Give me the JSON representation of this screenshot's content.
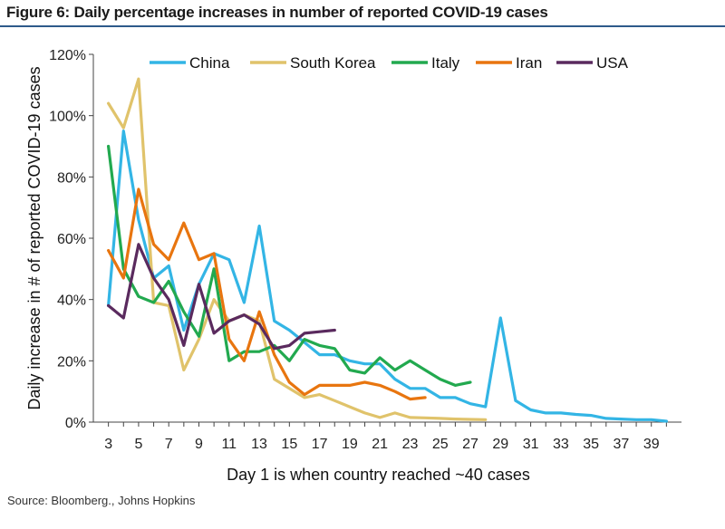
{
  "header": {
    "title": "Figure 6: Daily percentage increases in number of reported COVID-19 cases"
  },
  "footer": {
    "source": "Source: Bloomberg., Johns Hopkins"
  },
  "chart_data": {
    "type": "line",
    "title": "Figure 6: Daily percentage increases in number of reported COVID-19 cases",
    "xlabel": "Day 1 is when country reached ~40 cases",
    "ylabel": "Daily increase in # of reported COVID-19 cases",
    "xlim": [
      3,
      40
    ],
    "ylim": [
      0,
      120
    ],
    "x_ticks": [
      "3",
      "5",
      "7",
      "9",
      "11",
      "13",
      "15",
      "17",
      "19",
      "21",
      "23",
      "25",
      "27",
      "29",
      "31",
      "33",
      "35",
      "37",
      "39"
    ],
    "y_ticks": [
      "0%",
      "20%",
      "40%",
      "60%",
      "80%",
      "100%",
      "120%"
    ],
    "grid": false,
    "legend_position": "top",
    "series": [
      {
        "name": "China",
        "color": "#33b5e5",
        "x": [
          3,
          4,
          5,
          6,
          7,
          8,
          9,
          10,
          11,
          12,
          13,
          14,
          15,
          16,
          17,
          18,
          19,
          20,
          21,
          22,
          23,
          24,
          25,
          26,
          27,
          28,
          29,
          30,
          31,
          32,
          33,
          34,
          35,
          36,
          37,
          38,
          39,
          40
        ],
        "values": [
          38,
          95,
          66,
          47,
          51,
          30,
          45,
          55,
          53,
          39,
          64,
          33,
          30,
          26,
          22,
          22,
          20,
          19,
          19,
          14,
          11,
          11,
          8,
          8,
          6,
          5,
          34,
          7,
          4,
          3,
          3,
          2.5,
          2.2,
          1.2,
          1,
          0.8,
          0.8,
          0.3
        ]
      },
      {
        "name": "South Korea",
        "color": "#e0c36b",
        "x": [
          3,
          4,
          5,
          6,
          7,
          8,
          9,
          10,
          11,
          12,
          13,
          14,
          15,
          16,
          17,
          18,
          19,
          20,
          21,
          22,
          23,
          24,
          25,
          26,
          27,
          28
        ],
        "values": [
          104,
          96,
          112,
          39,
          38,
          17,
          27,
          40,
          33,
          35,
          33,
          14,
          11,
          8,
          9,
          7,
          5,
          3,
          1.5,
          3,
          1.5,
          1.4,
          1.2,
          1,
          0.9,
          0.8
        ]
      },
      {
        "name": "Italy",
        "color": "#22a94f",
        "x": [
          3,
          4,
          5,
          6,
          7,
          8,
          9,
          10,
          11,
          12,
          13,
          14,
          15,
          16,
          17,
          18,
          19,
          20,
          21,
          22,
          23,
          24,
          25,
          26,
          27
        ],
        "values": [
          90,
          50,
          41,
          39,
          46,
          36,
          28,
          50,
          20,
          23,
          23,
          25,
          20,
          27,
          25,
          24,
          17,
          16,
          21,
          17,
          20,
          17,
          14,
          12,
          13
        ]
      },
      {
        "name": "Iran",
        "color": "#e8750f",
        "x": [
          3,
          4,
          5,
          6,
          7,
          8,
          9,
          10,
          11,
          12,
          13,
          14,
          15,
          16,
          17,
          18,
          19,
          20,
          21,
          22,
          23,
          24
        ],
        "values": [
          56,
          47,
          76,
          58,
          53,
          65,
          53,
          55,
          27,
          20,
          36,
          22,
          13,
          9,
          12,
          12,
          12,
          13,
          12,
          10,
          7.5,
          8
        ]
      },
      {
        "name": "USA",
        "color": "#5a2a5e",
        "x": [
          3,
          4,
          5,
          6,
          7,
          8,
          9,
          10,
          11,
          12,
          13,
          14,
          15,
          16,
          17,
          18
        ],
        "values": [
          38,
          34,
          58,
          47,
          40,
          25,
          45,
          29,
          33,
          35,
          32,
          24,
          25,
          29,
          29.5,
          30
        ]
      }
    ]
  }
}
